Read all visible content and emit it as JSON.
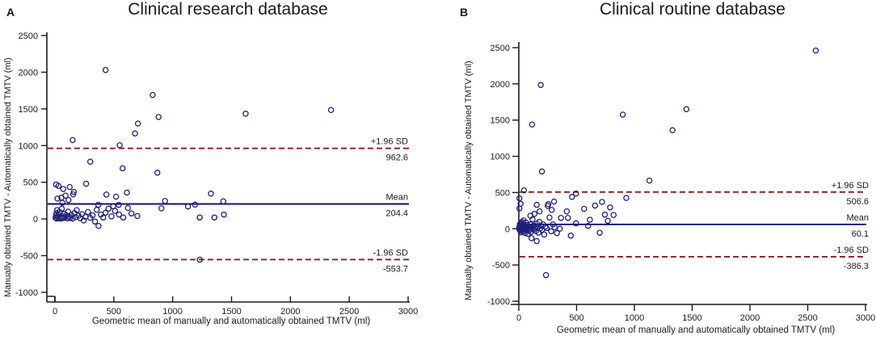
{
  "chart_data": [
    {
      "type": "scatter",
      "panel_label": "A",
      "title": "Clinical research database",
      "x_axis": {
        "label": "Geometric mean of manually and automatically obtained TMTV (ml)",
        "min": 0,
        "max": 3000,
        "ticks": [
          0,
          500,
          1000,
          1500,
          2000,
          2500,
          3000
        ]
      },
      "y_axis": {
        "label": "Manually obtained TMTV - Automatically obtained TMTV (ml)",
        "min": -1000,
        "max": 2500,
        "ticks": [
          -1000,
          -500,
          0,
          500,
          1000,
          1500,
          2000,
          2500
        ]
      },
      "grid": false,
      "legend": "none",
      "lines": [
        {
          "name": "upper-loa",
          "label": "+1.96 SD",
          "value": 962.6,
          "value_label": "962.6",
          "style": "dashed"
        },
        {
          "name": "mean",
          "label": "Mean",
          "value": 204.4,
          "value_label": "204.4",
          "style": "solid"
        },
        {
          "name": "lower-loa",
          "label": "-1.96 SD",
          "value": -553.7,
          "value_label": "-553.7",
          "style": "dashed"
        }
      ],
      "points": [
        [
          430,
          2030
        ],
        [
          830,
          1690
        ],
        [
          1620,
          1435
        ],
        [
          2345,
          1485
        ],
        [
          880,
          1390
        ],
        [
          705,
          1300
        ],
        [
          680,
          1165
        ],
        [
          150,
          1075
        ],
        [
          550,
          1005
        ],
        [
          870,
          630
        ],
        [
          575,
          690
        ],
        [
          300,
          780
        ],
        [
          10,
          470
        ],
        [
          30,
          450
        ],
        [
          70,
          408
        ],
        [
          125,
          435
        ],
        [
          265,
          480
        ],
        [
          160,
          368
        ],
        [
          90,
          318
        ],
        [
          155,
          335
        ],
        [
          55,
          290
        ],
        [
          115,
          258
        ],
        [
          21,
          278
        ],
        [
          63,
          220
        ],
        [
          437,
          333
        ],
        [
          519,
          303
        ],
        [
          611,
          359
        ],
        [
          368,
          192
        ],
        [
          495,
          174
        ],
        [
          542,
          192
        ],
        [
          935,
          245
        ],
        [
          905,
          145
        ],
        [
          1130,
          170
        ],
        [
          1190,
          195
        ],
        [
          1325,
          345
        ],
        [
          1430,
          240
        ],
        [
          1230,
          20
        ],
        [
          1355,
          20
        ],
        [
          1435,
          60
        ],
        [
          1230,
          -555
        ],
        [
          5,
          15
        ],
        [
          8,
          45
        ],
        [
          12,
          80
        ],
        [
          15,
          5
        ],
        [
          18,
          120
        ],
        [
          22,
          30
        ],
        [
          28,
          10
        ],
        [
          32,
          60
        ],
        [
          38,
          95
        ],
        [
          45,
          20
        ],
        [
          50,
          5
        ],
        [
          58,
          140
        ],
        [
          65,
          35
        ],
        [
          72,
          12
        ],
        [
          80,
          70
        ],
        [
          88,
          25
        ],
        [
          95,
          50
        ],
        [
          105,
          8
        ],
        [
          112,
          100
        ],
        [
          120,
          30
        ],
        [
          130,
          15
        ],
        [
          140,
          55
        ],
        [
          150,
          5
        ],
        [
          165,
          80
        ],
        [
          175,
          25
        ],
        [
          185,
          120
        ],
        [
          200,
          45
        ],
        [
          215,
          10
        ],
        [
          230,
          65
        ],
        [
          245,
          -20
        ],
        [
          260,
          30
        ],
        [
          280,
          95
        ],
        [
          300,
          15
        ],
        [
          320,
          50
        ],
        [
          340,
          -35
        ],
        [
          355,
          125
        ],
        [
          370,
          -95
        ],
        [
          390,
          60
        ],
        [
          410,
          20
        ],
        [
          430,
          85
        ],
        [
          455,
          140
        ],
        [
          480,
          35
        ],
        [
          510,
          110
        ],
        [
          545,
          60
        ],
        [
          580,
          20
        ],
        [
          620,
          150
        ],
        [
          650,
          75
        ],
        [
          700,
          40
        ]
      ]
    },
    {
      "type": "scatter",
      "panel_label": "B",
      "title": "Clinical routine database",
      "x_axis": {
        "label": "Geometric mean of manually and automatically obtained TMTV (ml)",
        "min": 0,
        "max": 3000,
        "ticks": [
          0,
          500,
          1000,
          1500,
          2000,
          2500,
          3000
        ]
      },
      "y_axis": {
        "label": "Manually obtained TMTV - Automatically obtained TMTV (ml)",
        "min": -1000,
        "max": 2500,
        "ticks": [
          -1000,
          -500,
          0,
          500,
          1000,
          1500,
          2000,
          2500
        ]
      },
      "grid": false,
      "legend": "none",
      "lines": [
        {
          "name": "upper-loa",
          "label": "+1.96 SD",
          "value": 506.6,
          "value_label": "506.6",
          "style": "dashed"
        },
        {
          "name": "mean",
          "label": "Mean",
          "value": 60.1,
          "value_label": "60.1",
          "style": "solid"
        },
        {
          "name": "lower-loa",
          "label": "-1.96 SD",
          "value": -386.3,
          "value_label": "-386.3",
          "style": "dashed"
        }
      ],
      "points": [
        [
          2570,
          2460
        ],
        [
          190,
          1985
        ],
        [
          115,
          1440
        ],
        [
          900,
          1575
        ],
        [
          1330,
          1360
        ],
        [
          1450,
          1650
        ],
        [
          1130,
          665
        ],
        [
          200,
          790
        ],
        [
          45,
          530
        ],
        [
          495,
          485
        ],
        [
          460,
          440
        ],
        [
          235,
          -640
        ],
        [
          930,
          425
        ],
        [
          565,
          275
        ],
        [
          660,
          320
        ],
        [
          720,
          370
        ],
        [
          790,
          295
        ],
        [
          745,
          195
        ],
        [
          615,
          125
        ],
        [
          425,
          150
        ],
        [
          415,
          240
        ],
        [
          355,
          0
        ],
        [
          305,
          375
        ],
        [
          255,
          340
        ],
        [
          285,
          260
        ],
        [
          250,
          315
        ],
        [
          180,
          240
        ],
        [
          155,
          330
        ],
        [
          135,
          205
        ],
        [
          100,
          180
        ],
        [
          495,
          75
        ],
        [
          600,
          40
        ],
        [
          700,
          -55
        ],
        [
          450,
          -95
        ],
        [
          365,
          150
        ],
        [
          110,
          -130
        ],
        [
          155,
          -170
        ],
        [
          770,
          110
        ],
        [
          820,
          190
        ],
        [
          5,
          420
        ],
        [
          15,
          345
        ],
        [
          5,
          280
        ],
        [
          3,
          5
        ],
        [
          5,
          25
        ],
        [
          7,
          -15
        ],
        [
          8,
          60
        ],
        [
          10,
          10
        ],
        [
          12,
          40
        ],
        [
          13,
          -30
        ],
        [
          15,
          80
        ],
        [
          16,
          0
        ],
        [
          18,
          25
        ],
        [
          20,
          -50
        ],
        [
          22,
          55
        ],
        [
          24,
          10
        ],
        [
          26,
          95
        ],
        [
          28,
          -10
        ],
        [
          30,
          35
        ],
        [
          32,
          70
        ],
        [
          35,
          5
        ],
        [
          38,
          -40
        ],
        [
          40,
          20
        ],
        [
          42,
          115
        ],
        [
          45,
          -5
        ],
        [
          48,
          45
        ],
        [
          52,
          10
        ],
        [
          55,
          -60
        ],
        [
          58,
          30
        ],
        [
          62,
          85
        ],
        [
          65,
          0
        ],
        [
          68,
          -25
        ],
        [
          72,
          50
        ],
        [
          75,
          15
        ],
        [
          80,
          -70
        ],
        [
          85,
          35
        ],
        [
          90,
          5
        ],
        [
          95,
          -15
        ],
        [
          100,
          60
        ],
        [
          105,
          -45
        ],
        [
          110,
          20
        ],
        [
          118,
          130
        ],
        [
          125,
          -10
        ],
        [
          132,
          45
        ],
        [
          140,
          10
        ],
        [
          148,
          -30
        ],
        [
          155,
          70
        ],
        [
          162,
          25
        ],
        [
          170,
          -55
        ],
        [
          178,
          95
        ],
        [
          185,
          5
        ],
        [
          192,
          40
        ],
        [
          200,
          -15
        ],
        [
          210,
          60
        ],
        [
          220,
          -80
        ],
        [
          230,
          30
        ],
        [
          240,
          10
        ],
        [
          265,
          155
        ],
        [
          280,
          -35
        ],
        [
          295,
          60
        ],
        [
          310,
          20
        ],
        [
          330,
          -60
        ]
      ]
    }
  ],
  "colors": {
    "marker": "#20207a",
    "mean_line": "#00008b",
    "loa_line": "#8b1d1d",
    "axis": "#1b1b1b",
    "text": "#1b1b1b"
  }
}
